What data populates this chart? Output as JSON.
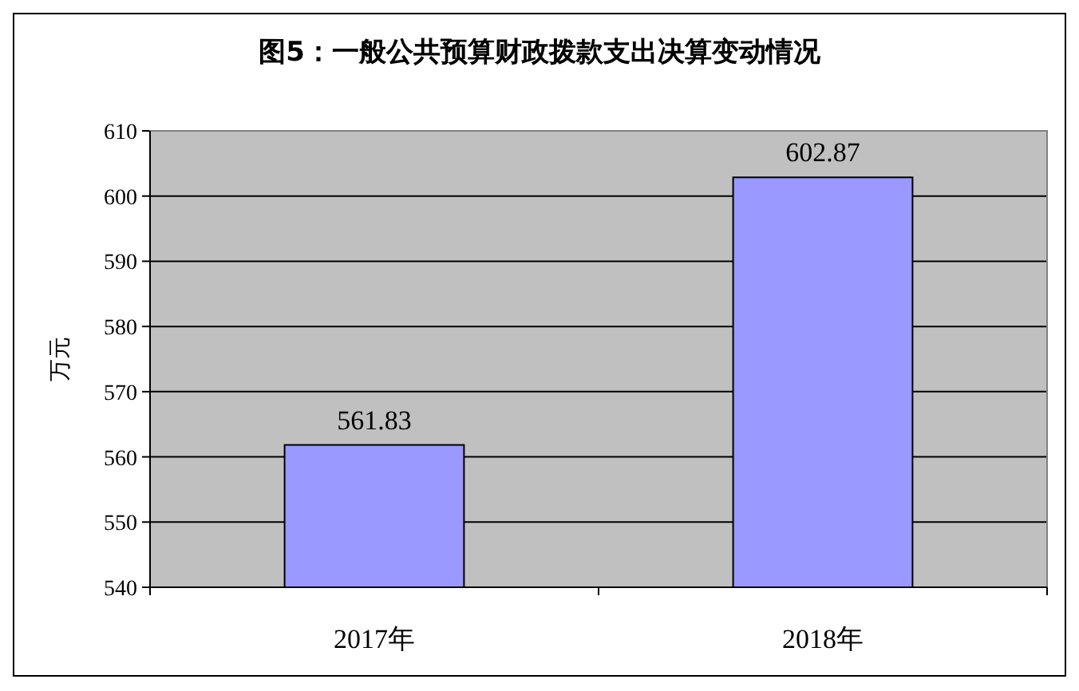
{
  "chart_data": {
    "type": "bar",
    "title": "图5：一般公共预算财政拨款支出决算变动情况",
    "ylabel": "万元",
    "categories": [
      "2017年",
      "2018年"
    ],
    "values": [
      561.83,
      602.87
    ],
    "color": "#9999ff",
    "ylim": [
      540,
      610
    ],
    "yticks": [
      540,
      550,
      560,
      570,
      580,
      590,
      600,
      610
    ],
    "grid": "y",
    "data_labels": true
  }
}
